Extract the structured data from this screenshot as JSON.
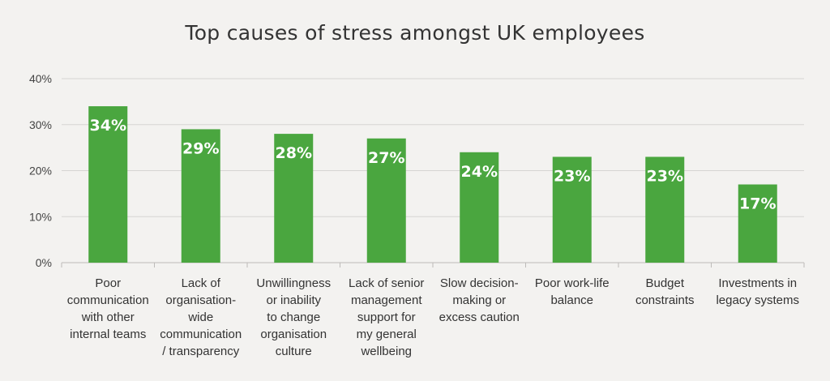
{
  "chart_data": {
    "type": "bar",
    "title": "Top causes of stress amongst UK employees",
    "xlabel": "",
    "ylabel": "",
    "ylim": [
      0,
      40
    ],
    "yticks": [
      "0%",
      "10%",
      "20%",
      "30%",
      "40%"
    ],
    "grid": true,
    "categories": [
      "Poor communication with other internal teams",
      "Lack of organisation-wide communication / transparency",
      "Unwillingness or inability to change organisation culture",
      "Lack of senior management support for my general wellbeing",
      "Slow decision-making or excess caution",
      "Poor work-life balance",
      "Budget constraints",
      "Investments in legacy systems"
    ],
    "category_lines": [
      [
        "Poor",
        "communication",
        "with other",
        "internal teams"
      ],
      [
        "Lack of",
        "organisation-",
        "wide",
        "communication",
        "/ transparency"
      ],
      [
        "Unwillingness",
        "or inability",
        "to change",
        "organisation",
        "culture"
      ],
      [
        "Lack of senior",
        "management",
        "support for",
        "my general",
        "wellbeing"
      ],
      [
        "Slow decision-",
        "making or",
        "excess caution"
      ],
      [
        "Poor work-life",
        "balance"
      ],
      [
        "Budget",
        "constraints"
      ],
      [
        "Investments in",
        "legacy systems"
      ]
    ],
    "values": [
      34,
      29,
      28,
      27,
      24,
      23,
      23,
      17
    ],
    "data_labels": [
      "34%",
      "29%",
      "28%",
      "27%",
      "24%",
      "23%",
      "23%",
      "17%"
    ],
    "colors": {
      "bar": "#4aa63f",
      "grid": "#d6d4d2",
      "axis": "#bdbbb9"
    }
  }
}
